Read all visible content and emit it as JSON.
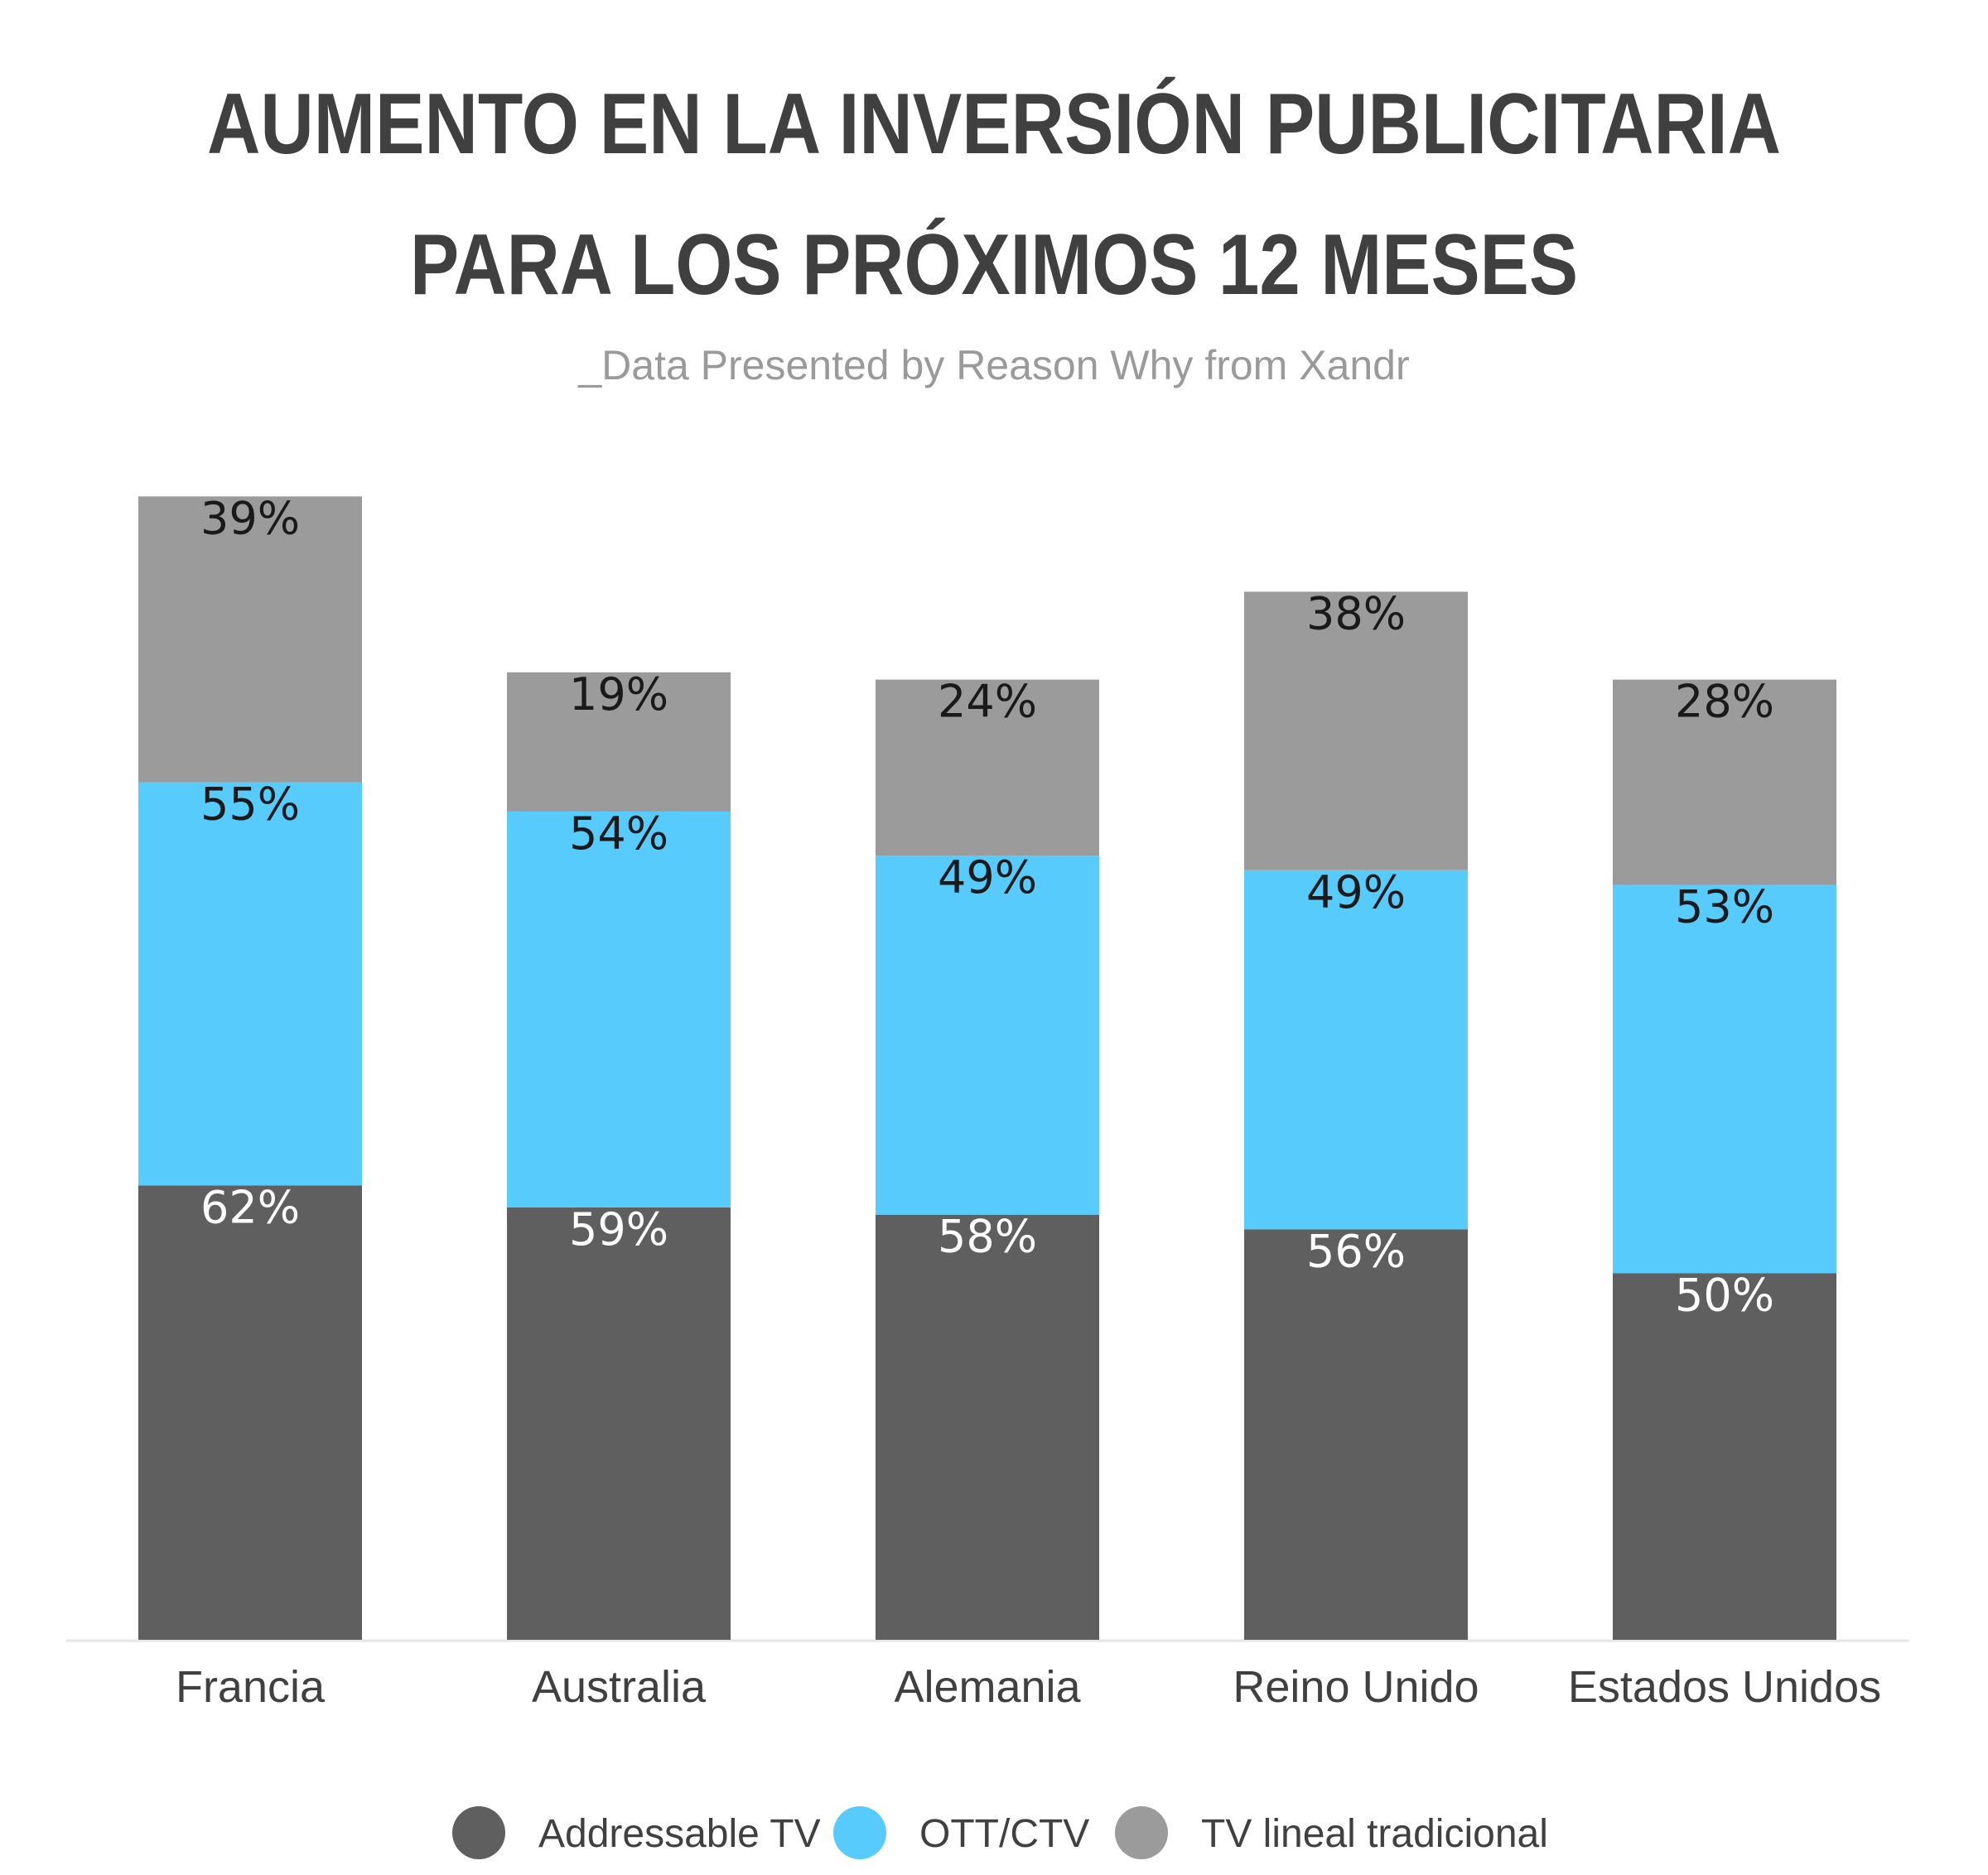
{
  "chart_data": {
    "type": "bar",
    "stacked": true,
    "title_line1": "AUMENTO EN LA INVERSIÓN PUBLICITARIA",
    "title_line2": "PARA LOS PRÓXIMOS 12 MESES",
    "subtitle": "_Data Presented by Reason Why from Xandr",
    "categories": [
      "Francia",
      "Australia",
      "Alemania",
      "Reino Unido",
      "Estados Unidos"
    ],
    "series": [
      {
        "name": "Addressable TV",
        "values": [
          62,
          59,
          58,
          56,
          50
        ],
        "labels": [
          "62%",
          "59%",
          "58%",
          "56%",
          "50%"
        ],
        "color": "#5f5f5f",
        "label_color": "#ffffff"
      },
      {
        "name": "OTT/CTV",
        "values": [
          55,
          54,
          49,
          49,
          53
        ],
        "labels": [
          "55%",
          "54%",
          "49%",
          "49%",
          "53%"
        ],
        "color": "#57cbfc",
        "label_color": "#1a1a1a"
      },
      {
        "name": "TV lineal tradicional",
        "values": [
          39,
          19,
          24,
          38,
          28
        ],
        "labels": [
          "39%",
          "19%",
          "24%",
          "38%",
          "28%"
        ],
        "color": "#9b9b9b",
        "label_color": "#1a1a1a"
      }
    ],
    "legend_position": "bottom",
    "grid": false
  }
}
